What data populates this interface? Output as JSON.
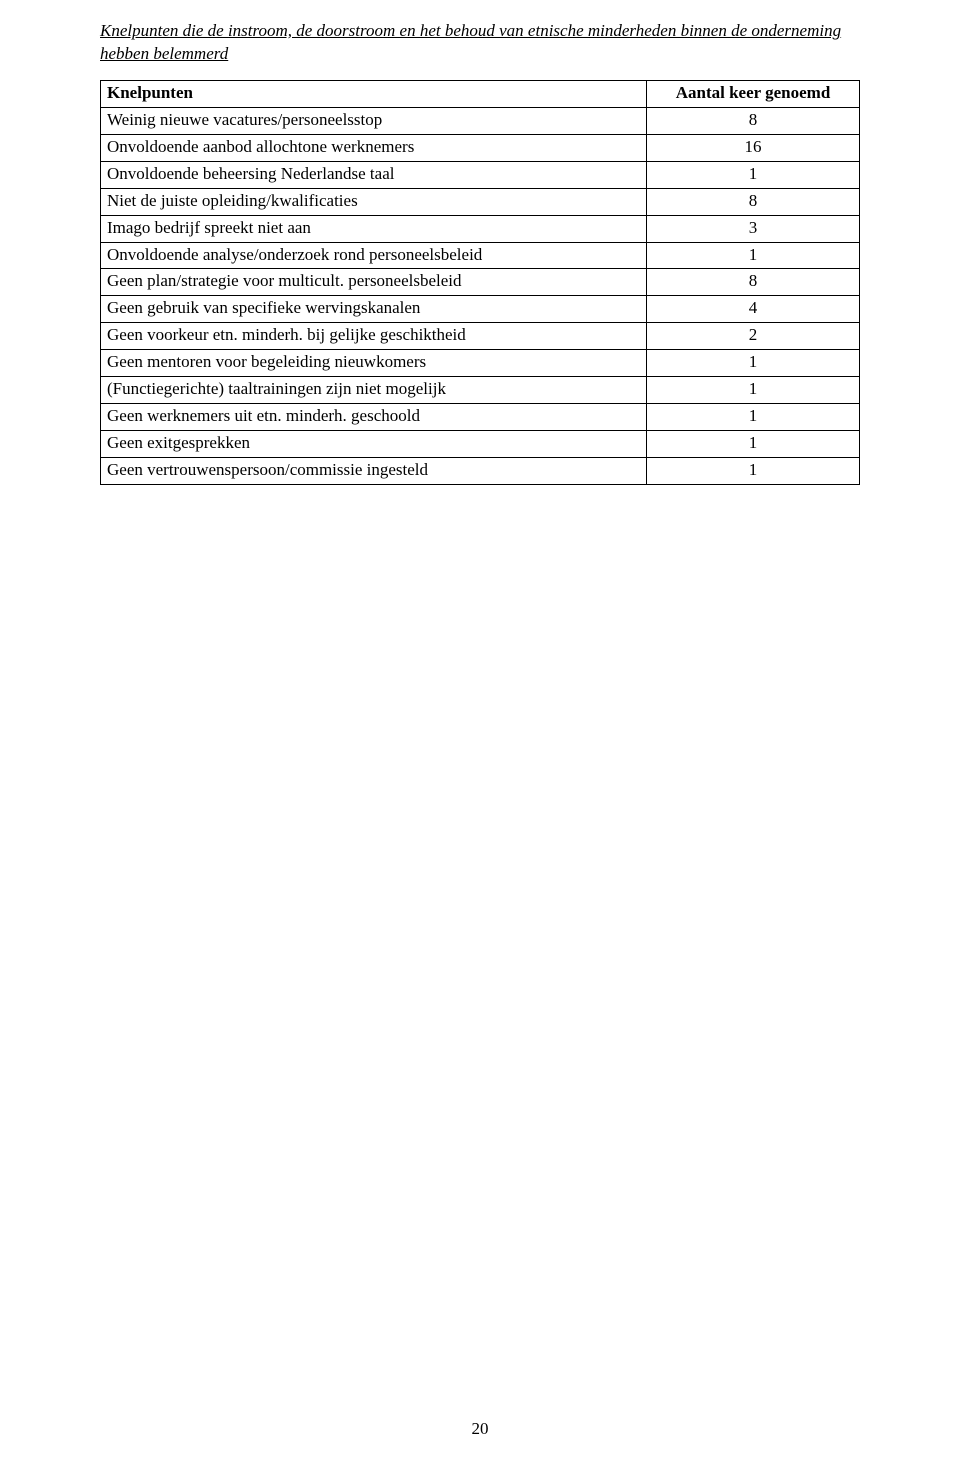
{
  "heading": "Knelpunten die de instroom, de doorstroom en het behoud van etnische minderheden binnen de onderneming hebben belemmerd",
  "table": {
    "header": {
      "label": "Knelpunten",
      "value": "Aantal keer genoemd"
    },
    "rows": [
      {
        "label": "Weinig nieuwe vacatures/personeelsstop",
        "value": "8"
      },
      {
        "label": "Onvoldoende aanbod allochtone werknemers",
        "value": "16"
      },
      {
        "label": "Onvoldoende beheersing Nederlandse taal",
        "value": "1"
      },
      {
        "label": "Niet de juiste opleiding/kwalificaties",
        "value": "8"
      },
      {
        "label": "Imago bedrijf spreekt niet aan",
        "value": "3"
      },
      {
        "label": "Onvoldoende analyse/onderzoek rond personeelsbeleid",
        "value": "1"
      },
      {
        "label": "Geen plan/strategie voor multicult. personeelsbeleid",
        "value": "8"
      },
      {
        "label": "Geen gebruik van specifieke wervingskanalen",
        "value": "4"
      },
      {
        "label": "Geen voorkeur etn. minderh. bij gelijke geschiktheid",
        "value": "2"
      },
      {
        "label": "Geen mentoren voor begeleiding nieuwkomers",
        "value": "1"
      },
      {
        "label": "(Functiegerichte) taaltrainingen zijn niet mogelijk",
        "value": "1"
      },
      {
        "label": "Geen werknemers uit etn. minderh. geschoold",
        "value": "1"
      },
      {
        "label": "Geen exitgesprekken",
        "value": "1"
      },
      {
        "label": "Geen vertrouwenspersoon/commissie ingesteld",
        "value": "1"
      }
    ]
  },
  "pageNumber": "20"
}
